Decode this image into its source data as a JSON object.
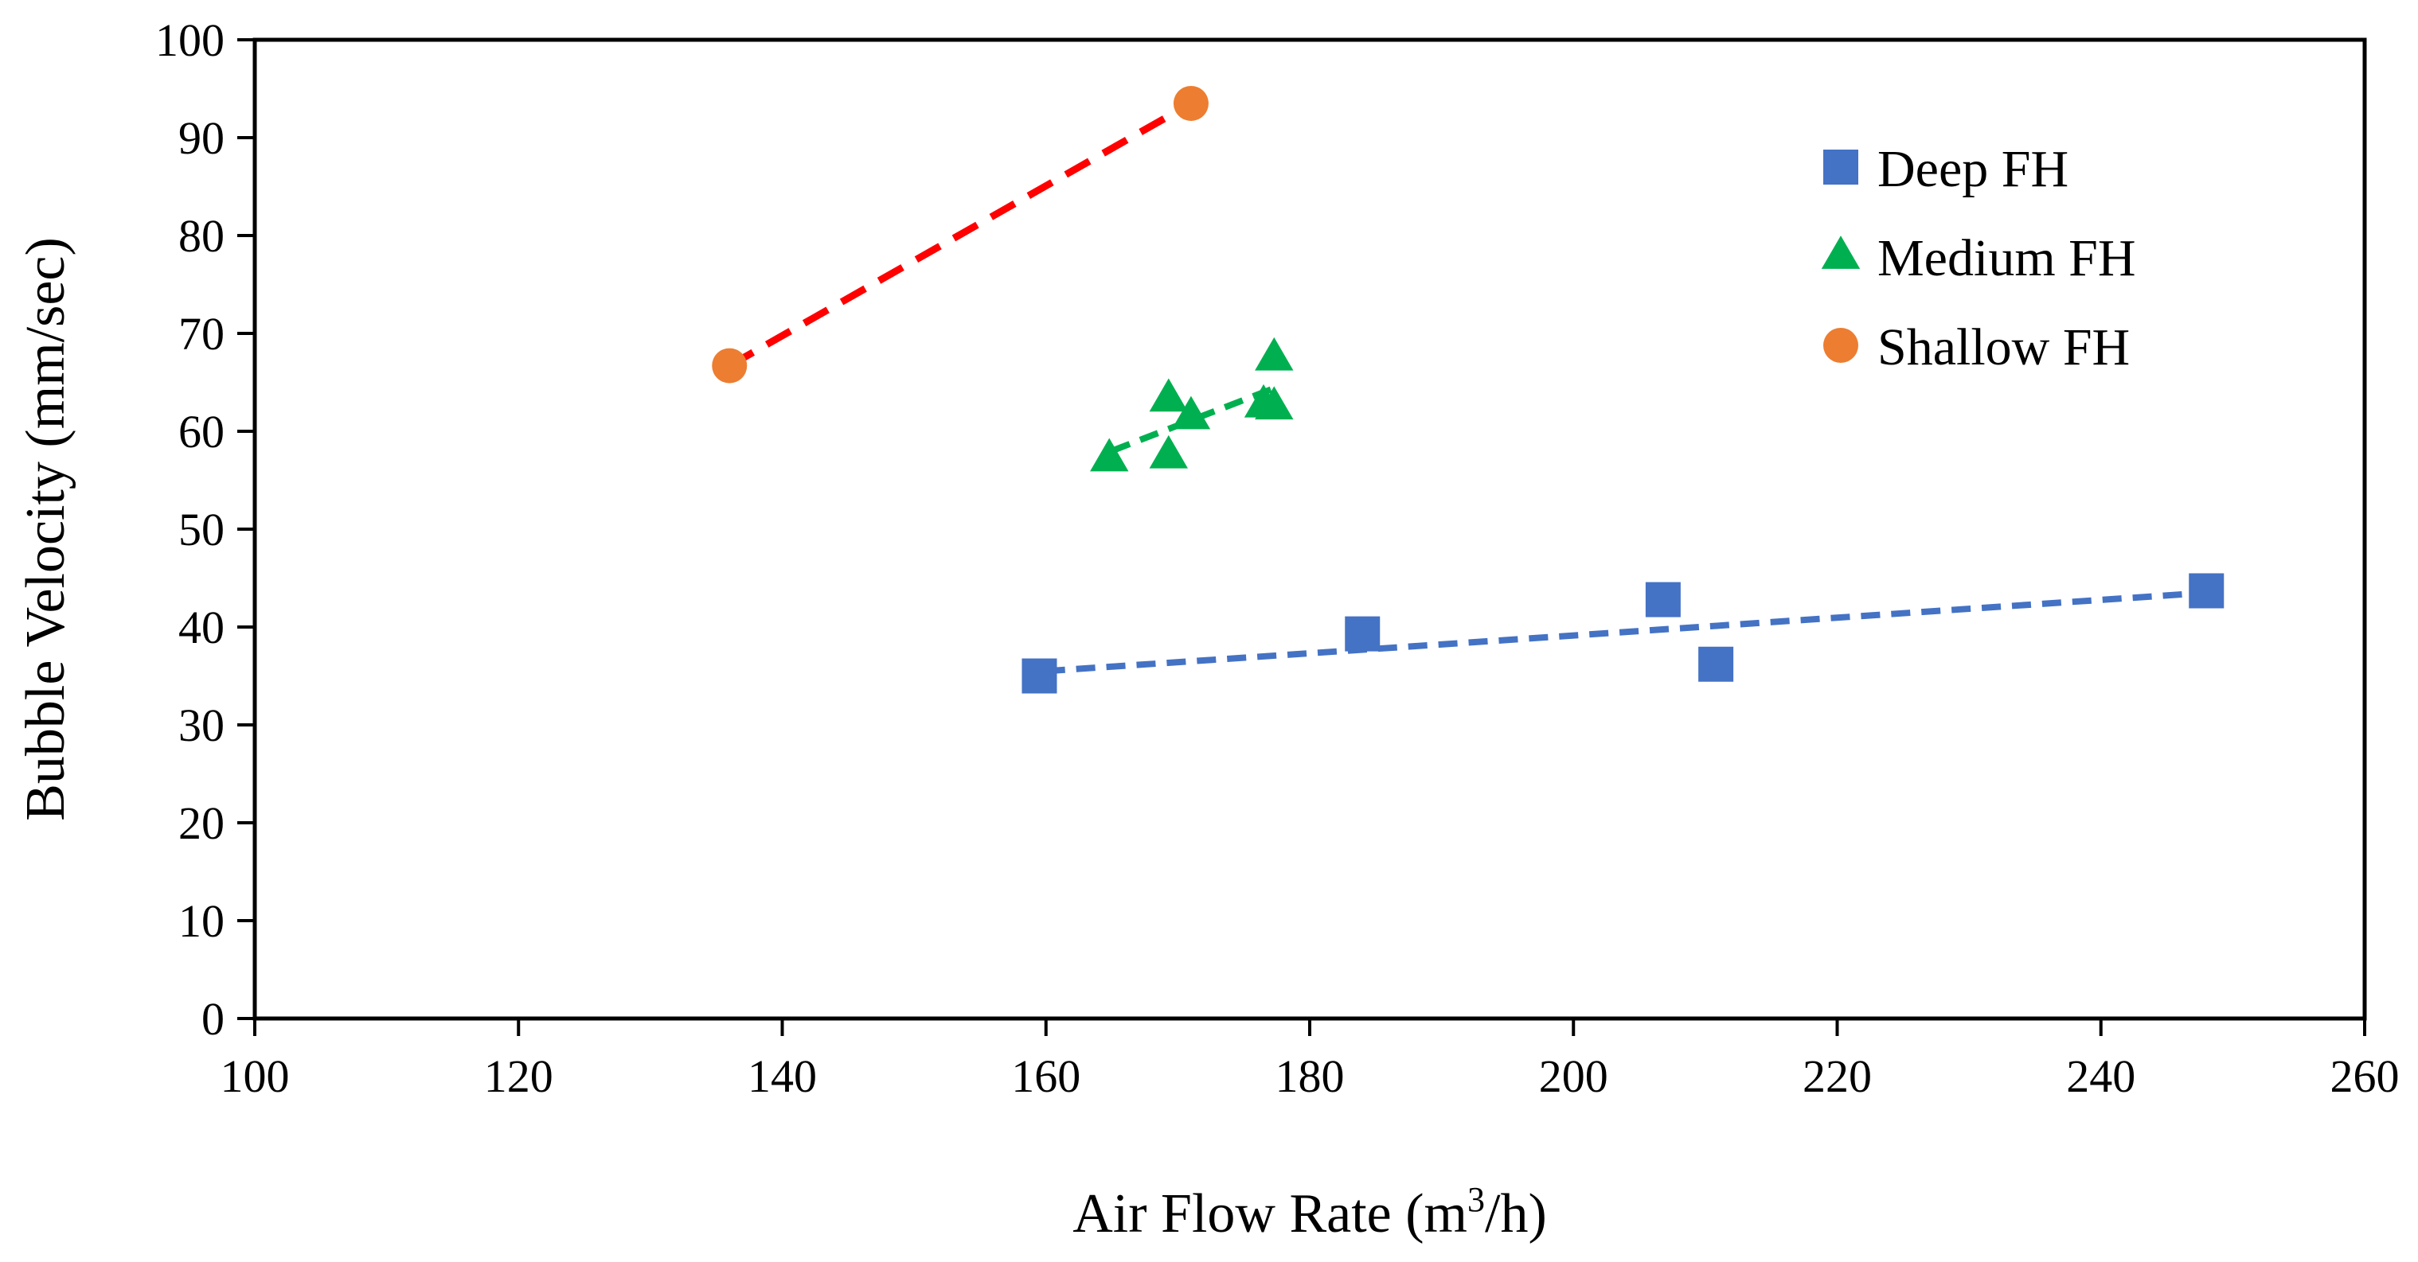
{
  "chart_data": {
    "type": "scatter",
    "title": "",
    "xlabel": "Air Flow Rate (m",
    "xlabel_sup": "3",
    "xlabel_end": "/h)",
    "ylabel": "Bubble Velocity (mm/sec)",
    "xlim": [
      100,
      260
    ],
    "ylim": [
      0,
      100
    ],
    "xticks": [
      "100",
      "120",
      "140",
      "160",
      "180",
      "200",
      "220",
      "240",
      "260"
    ],
    "yticks": [
      "0",
      "10",
      "20",
      "30",
      "40",
      "50",
      "60",
      "70",
      "80",
      "90",
      "100"
    ],
    "grid": false,
    "legend_position": "top-right",
    "series": [
      {
        "name": "Deep FH",
        "marker": "square",
        "color": "#4472C4",
        "trendline": {
          "x": [
            160,
            248
          ],
          "y": [
            35.5,
            43.5
          ]
        },
        "points": [
          {
            "x": 159.5,
            "y": 35.0
          },
          {
            "x": 184.0,
            "y": 39.3
          },
          {
            "x": 206.8,
            "y": 42.8
          },
          {
            "x": 210.8,
            "y": 36.2
          },
          {
            "x": 248.0,
            "y": 43.7
          }
        ]
      },
      {
        "name": "Medium FH",
        "marker": "triangle",
        "color": "#00B050",
        "trendline": {
          "x": [
            165,
            177.5
          ],
          "y": [
            58.0,
            64.5
          ]
        },
        "points": [
          {
            "x": 164.8,
            "y": 57.2
          },
          {
            "x": 169.3,
            "y": 63.3
          },
          {
            "x": 169.3,
            "y": 57.5
          },
          {
            "x": 171.0,
            "y": 61.5
          },
          {
            "x": 176.5,
            "y": 62.7
          },
          {
            "x": 177.3,
            "y": 62.5
          },
          {
            "x": 177.3,
            "y": 67.5
          }
        ]
      },
      {
        "name": "Shallow FH",
        "marker": "circle",
        "color": "#ED7D31",
        "trendline": {
          "x": [
            136,
            171
          ],
          "y": [
            66.7,
            93.5
          ],
          "color": "#FF0000"
        },
        "points": [
          {
            "x": 136.0,
            "y": 66.7
          },
          {
            "x": 171.0,
            "y": 93.5
          }
        ]
      }
    ]
  }
}
